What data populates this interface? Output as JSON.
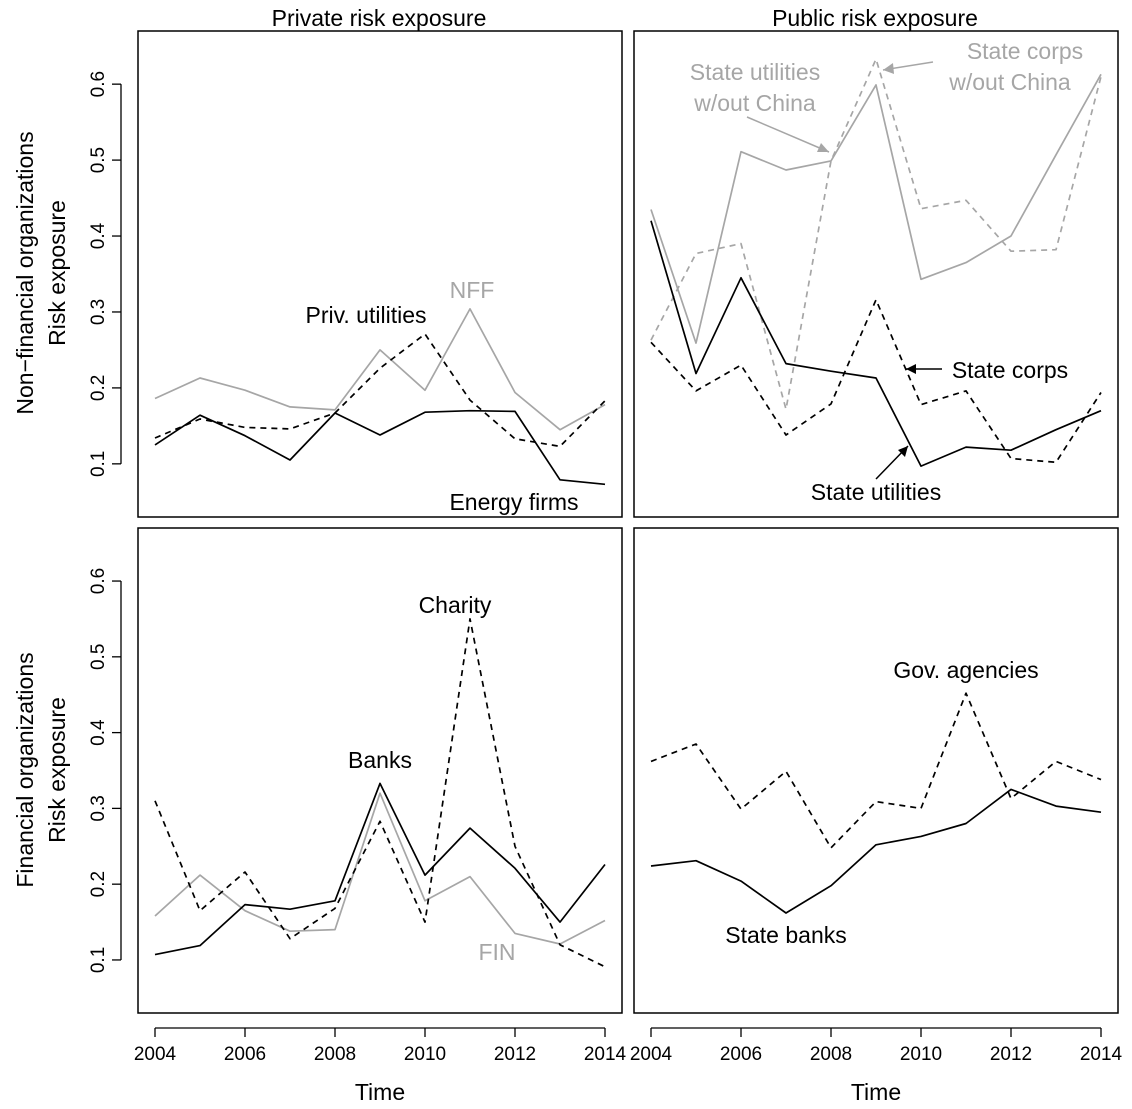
{
  "colors": {
    "black": "#000000",
    "gray": "#a6a6a6"
  },
  "column_titles": [
    "Private risk exposure",
    "Public risk exposure"
  ],
  "row_labels": [
    [
      "Non−financial organizations",
      "Risk exposure"
    ],
    [
      "Financial organizations",
      "Risk exposure"
    ]
  ],
  "xlabel": "Time",
  "x_ticks": [
    2004,
    2006,
    2008,
    2010,
    2012,
    2014
  ],
  "y_ticks": [
    0.1,
    0.2,
    0.3,
    0.4,
    0.5,
    0.6
  ],
  "chart_data": [
    {
      "type": "line",
      "panel": "top-left",
      "title": "Private risk exposure",
      "ylabel": "Non−financial organizations Risk exposure",
      "xlabel": "",
      "xlim": [
        2004,
        2014
      ],
      "ylim": [
        0.03,
        0.67
      ],
      "x": [
        2004,
        2005,
        2006,
        2007,
        2008,
        2009,
        2010,
        2011,
        2012,
        2013,
        2014
      ],
      "series": [
        {
          "name": "NFF",
          "color": "gray",
          "dash": "solid",
          "values": [
            0.186,
            0.213,
            0.197,
            0.175,
            0.171,
            0.25,
            0.197,
            0.304,
            0.194,
            0.145,
            0.178
          ]
        },
        {
          "name": "Priv. utilities",
          "color": "black",
          "dash": "dashed",
          "values": [
            0.134,
            0.159,
            0.148,
            0.146,
            0.167,
            0.226,
            0.271,
            0.184,
            0.133,
            0.123,
            0.183
          ]
        },
        {
          "name": "Energy firms",
          "color": "black",
          "dash": "solid",
          "values": [
            0.125,
            0.164,
            0.137,
            0.105,
            0.167,
            0.138,
            0.168,
            0.17,
            0.169,
            0.079,
            0.073
          ]
        }
      ],
      "annotations": [
        {
          "text": "NFF",
          "color": "gray"
        },
        {
          "text": "Priv. utilities",
          "color": "black"
        },
        {
          "text": "Energy firms",
          "color": "black"
        }
      ]
    },
    {
      "type": "line",
      "panel": "top-right",
      "title": "Public risk exposure",
      "xlabel": "",
      "ylabel": "",
      "xlim": [
        2004,
        2014
      ],
      "ylim": [
        0.03,
        0.67
      ],
      "x": [
        2004,
        2005,
        2006,
        2007,
        2008,
        2009,
        2010,
        2011,
        2012,
        2013,
        2014
      ],
      "series": [
        {
          "name": "State utilities w/out China",
          "color": "gray",
          "dash": "solid",
          "values": [
            0.435,
            0.259,
            0.511,
            0.487,
            0.499,
            0.599,
            0.343,
            0.365,
            0.4,
            0.507,
            0.613
          ]
        },
        {
          "name": "State corps w/out China",
          "color": "gray",
          "dash": "dashed",
          "values": [
            0.263,
            0.377,
            0.39,
            0.172,
            0.499,
            0.633,
            0.436,
            0.447,
            0.38,
            0.382,
            0.61
          ]
        },
        {
          "name": "State corps",
          "color": "black",
          "dash": "dashed",
          "values": [
            0.26,
            0.196,
            0.23,
            0.138,
            0.179,
            0.316,
            0.178,
            0.196,
            0.107,
            0.102,
            0.194
          ]
        },
        {
          "name": "State utilities",
          "color": "black",
          "dash": "solid",
          "values": [
            0.42,
            0.219,
            0.345,
            0.232,
            0.222,
            0.213,
            0.097,
            0.122,
            0.118,
            0.145,
            0.17
          ]
        }
      ],
      "annotations": [
        {
          "text": "State utilities",
          "line2": "w/out China",
          "color": "gray"
        },
        {
          "text": "State corps",
          "line2": "w/out China",
          "color": "gray"
        },
        {
          "text": "State corps",
          "color": "black"
        },
        {
          "text": "State utilities",
          "color": "black"
        }
      ]
    },
    {
      "type": "line",
      "panel": "bottom-left",
      "xlabel": "Time",
      "ylabel": "Financial organizations Risk exposure",
      "xlim": [
        2004,
        2014
      ],
      "ylim": [
        0.03,
        0.67
      ],
      "x": [
        2004,
        2005,
        2006,
        2007,
        2008,
        2009,
        2010,
        2011,
        2012,
        2013,
        2014
      ],
      "series": [
        {
          "name": "FIN",
          "color": "gray",
          "dash": "solid",
          "values": [
            0.158,
            0.212,
            0.165,
            0.138,
            0.14,
            0.32,
            0.178,
            0.21,
            0.135,
            0.121,
            0.152
          ]
        },
        {
          "name": "Charity",
          "color": "black",
          "dash": "dashed",
          "values": [
            0.31,
            0.165,
            0.216,
            0.128,
            0.168,
            0.283,
            0.15,
            0.55,
            0.25,
            0.12,
            0.091
          ]
        },
        {
          "name": "Banks",
          "color": "black",
          "dash": "solid",
          "values": [
            0.107,
            0.119,
            0.173,
            0.167,
            0.178,
            0.333,
            0.212,
            0.274,
            0.221,
            0.15,
            0.226
          ]
        }
      ],
      "annotations": [
        {
          "text": "Charity",
          "color": "black"
        },
        {
          "text": "Banks",
          "color": "black"
        },
        {
          "text": "FIN",
          "color": "gray"
        }
      ]
    },
    {
      "type": "line",
      "panel": "bottom-right",
      "xlabel": "Time",
      "ylabel": "",
      "xlim": [
        2004,
        2014
      ],
      "ylim": [
        0.03,
        0.67
      ],
      "x": [
        2004,
        2005,
        2006,
        2007,
        2008,
        2009,
        2010,
        2011,
        2012,
        2013,
        2014
      ],
      "series": [
        {
          "name": "Gov. agencies",
          "color": "black",
          "dash": "dashed",
          "values": [
            0.362,
            0.385,
            0.299,
            0.349,
            0.248,
            0.309,
            0.3,
            0.452,
            0.313,
            0.362,
            0.338
          ]
        },
        {
          "name": "State banks",
          "color": "black",
          "dash": "solid",
          "values": [
            0.224,
            0.231,
            0.204,
            0.162,
            0.198,
            0.252,
            0.263,
            0.28,
            0.325,
            0.303,
            0.295
          ]
        }
      ],
      "annotations": [
        {
          "text": "Gov. agencies",
          "color": "black"
        },
        {
          "text": "State banks",
          "color": "black"
        }
      ]
    }
  ]
}
